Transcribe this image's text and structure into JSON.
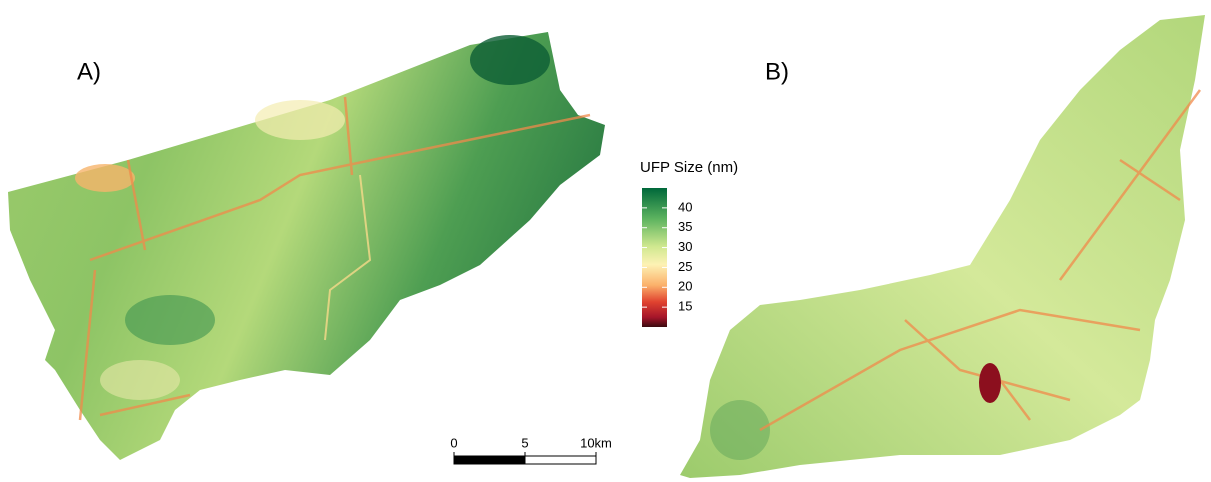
{
  "panels": [
    {
      "label": "A)"
    },
    {
      "label": "B)"
    }
  ],
  "legend": {
    "title": "UFP Size (nm)",
    "lim": [
      10,
      45
    ],
    "ticks": [
      40,
      35,
      30,
      25,
      20,
      15
    ]
  },
  "scale_bar": {
    "ticks": [
      0,
      5,
      {
        "value": 10,
        "label": "10km"
      }
    ]
  }
}
